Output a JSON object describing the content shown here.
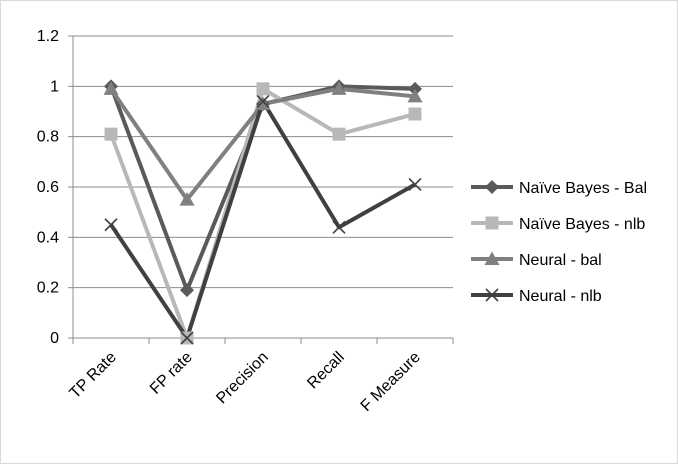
{
  "chart_data": {
    "type": "line",
    "categories": [
      "TP Rate",
      "FP rate",
      "Precision",
      "Recall",
      "F Measure"
    ],
    "ylim": [
      0,
      1.2
    ],
    "yticks": [
      0,
      0.2,
      0.4,
      0.6,
      0.8,
      1,
      1.2
    ],
    "ytick_labels": [
      "0",
      "0.2",
      "0.4",
      "0.6",
      "0.8",
      "1",
      "1.2"
    ],
    "grid": true,
    "legend_position": "right",
    "series": [
      {
        "name": "Naïve Bayes - Bal",
        "marker": "diamond",
        "color": "#5a5a5a",
        "values": [
          1.0,
          0.19,
          0.93,
          1.0,
          0.99
        ]
      },
      {
        "name": "Naïve Bayes - nlb",
        "marker": "square",
        "color": "#b8b8b8",
        "values": [
          0.81,
          0.0,
          0.99,
          0.81,
          0.89
        ]
      },
      {
        "name": "Neural - bal",
        "marker": "triangle",
        "color": "#808080",
        "values": [
          0.99,
          0.55,
          0.93,
          0.99,
          0.96
        ]
      },
      {
        "name": "Neural - nlb",
        "marker": "x",
        "color": "#404040",
        "values": [
          0.45,
          0.0,
          0.94,
          0.44,
          0.61
        ]
      }
    ]
  }
}
